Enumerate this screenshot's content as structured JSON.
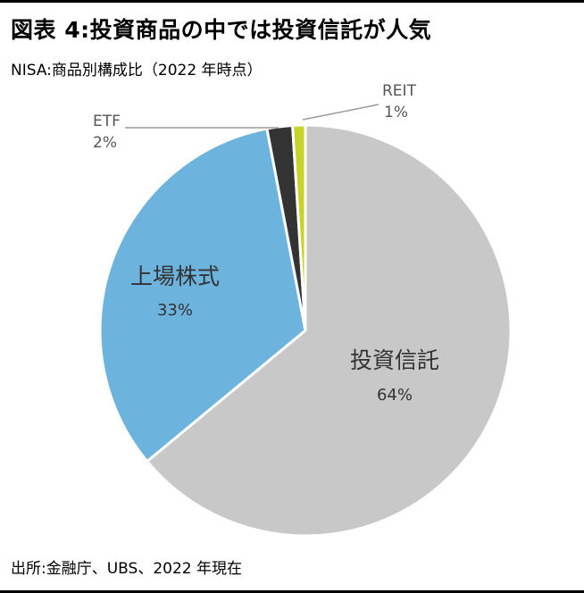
{
  "header": {
    "title": "図表 4:投資商品の中では投資信託が人気",
    "subtitle": "NISA:商品別構成比（2022 年時点）"
  },
  "footer": {
    "source": "出所:金融庁、UBS、2022 年現在"
  },
  "chart_data": {
    "type": "pie",
    "title": "",
    "slices": [
      {
        "label": "投資信託",
        "value": 64,
        "value_label": "64%",
        "color": "#c8c8c8"
      },
      {
        "label": "上場株式",
        "value": 33,
        "value_label": "33%",
        "color": "#6cb3de"
      },
      {
        "label": "ETF",
        "value": 2,
        "value_label": "2%",
        "color": "#333333"
      },
      {
        "label": "REIT",
        "value": 1,
        "value_label": "1%",
        "color": "#c6d42a"
      }
    ],
    "start": "12 o'clock",
    "direction": "clockwise",
    "legend": "none"
  }
}
